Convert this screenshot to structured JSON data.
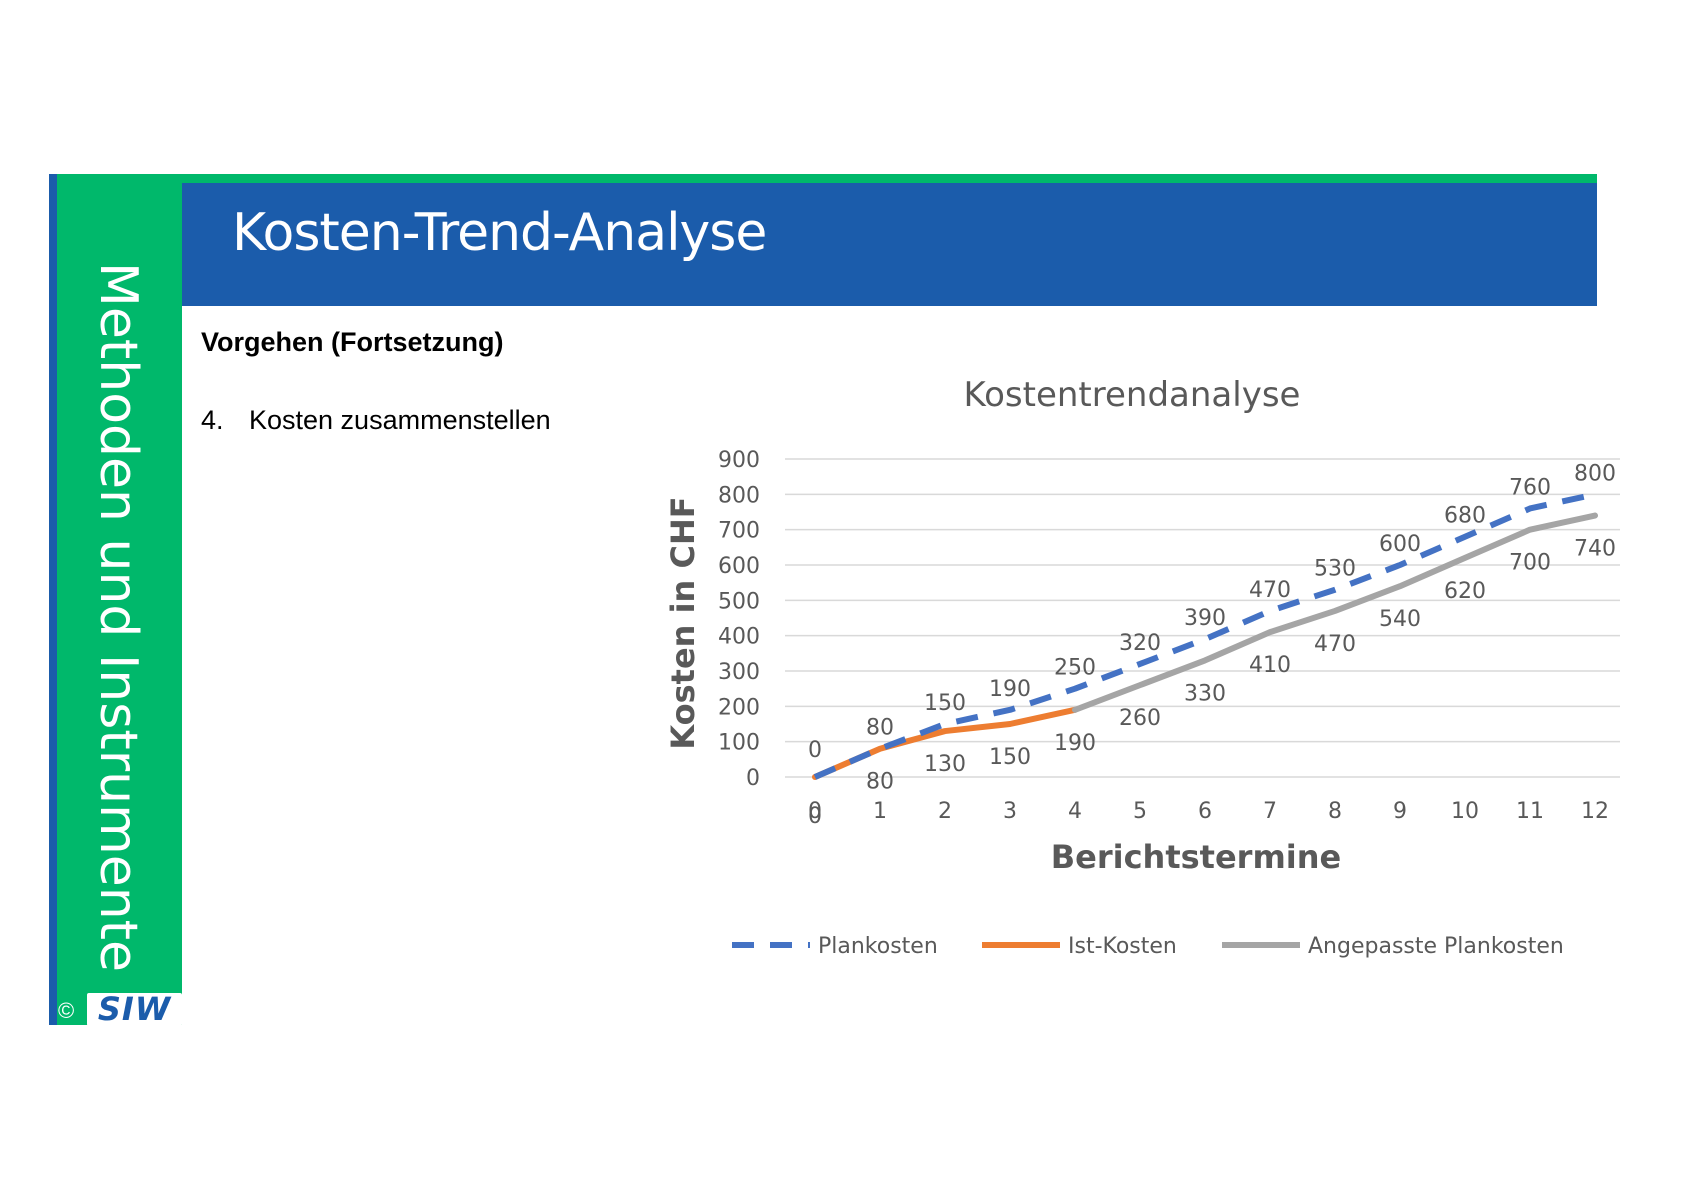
{
  "sidebar": {
    "label": "Methoden und Instrumente"
  },
  "header": {
    "title": "Kosten-Trend-Analyse"
  },
  "content": {
    "subtitle": "Vorgehen (Fortsetzung)",
    "step_number": "4.",
    "step_text": "Kosten zusammenstellen"
  },
  "footer": {
    "copyright": "©",
    "logo_text": "SIW"
  },
  "colors": {
    "green": "#00b86b",
    "blue": "#1b5cab",
    "plan": "#4472c4",
    "ist": "#ed7d31",
    "adjusted": "#a5a5a5"
  },
  "chart_data": {
    "type": "line",
    "title": "Kostentrendanalyse",
    "xlabel": "Berichtstermine",
    "ylabel": "Kosten in CHF",
    "x": [
      0,
      1,
      2,
      3,
      4,
      5,
      6,
      7,
      8,
      9,
      10,
      11,
      12
    ],
    "ylim": [
      0,
      900
    ],
    "y_ticks": [
      0,
      100,
      200,
      300,
      400,
      500,
      600,
      700,
      800,
      900
    ],
    "grid": true,
    "legend": "bottom",
    "series": [
      {
        "name": "Plankosten",
        "style": "dashed",
        "color": "#4472c4",
        "x": [
          0,
          1,
          2,
          3,
          4,
          5,
          6,
          7,
          8,
          9,
          10,
          11,
          12
        ],
        "values": [
          0,
          80,
          150,
          190,
          250,
          320,
          390,
          470,
          530,
          600,
          680,
          760,
          800
        ]
      },
      {
        "name": "Ist-Kosten",
        "style": "solid",
        "color": "#ed7d31",
        "x": [
          0,
          1,
          2,
          3,
          4
        ],
        "values": [
          0,
          80,
          130,
          150,
          190
        ]
      },
      {
        "name": "Angepasste Plankosten",
        "style": "solid",
        "color": "#a5a5a5",
        "x": [
          4,
          5,
          6,
          7,
          8,
          9,
          10,
          11,
          12
        ],
        "values": [
          190,
          260,
          330,
          410,
          470,
          540,
          620,
          700,
          740
        ]
      }
    ]
  }
}
